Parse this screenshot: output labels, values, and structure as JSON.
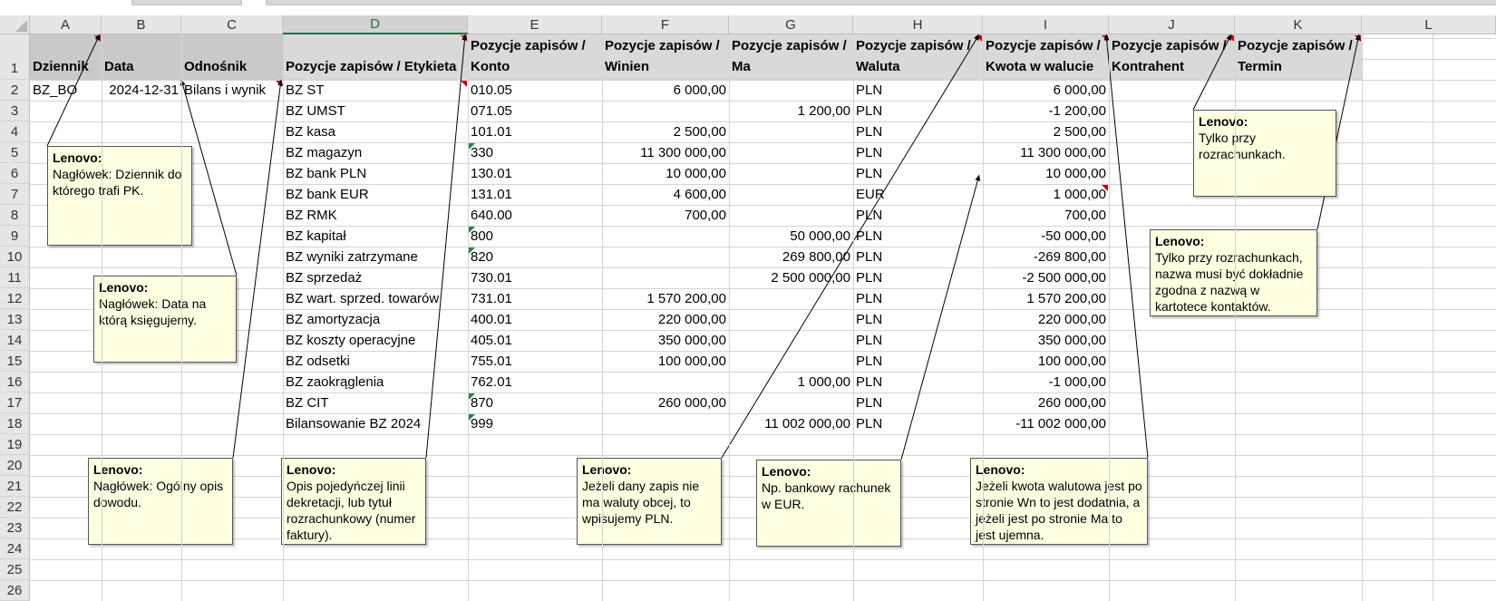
{
  "columns": [
    "A",
    "B",
    "C",
    "D",
    "E",
    "F",
    "G",
    "H",
    "I",
    "J",
    "K",
    "L"
  ],
  "rows": [
    "1",
    "2",
    "3",
    "4",
    "5",
    "6",
    "7",
    "8",
    "9",
    "10",
    "11",
    "12",
    "13",
    "14",
    "15",
    "16",
    "17",
    "18",
    "19",
    "20",
    "21",
    "22",
    "23",
    "24",
    "25",
    "26"
  ],
  "headers": {
    "dziennik": "Dziennik",
    "data": "Data",
    "odnosnik": "Odnośnik",
    "etykieta": "Pozycje zapisów / Etykieta",
    "konto": [
      "Pozycje zapisów /",
      "Konto"
    ],
    "winien": [
      "Pozycje zapisów /",
      "Winien"
    ],
    "ma": [
      "Pozycje zapisów /",
      "Ma"
    ],
    "waluta": [
      "Pozycje zapisów /",
      "Waluta"
    ],
    "kwota": [
      "Pozycje zapisów /",
      "Kwota w walucie"
    ],
    "kontrahent": [
      "Pozycje zapisów /",
      "Kontrahent"
    ],
    "termin": [
      "Pozycje zapisów /",
      "Termin"
    ]
  },
  "first_row": {
    "dziennik": "BZ_BO",
    "data": "2024-12-31",
    "odnosnik": "Bilans i wynik"
  },
  "entries": [
    {
      "etykieta": "BZ ST",
      "konto": "010.05",
      "winien": "6 000,00",
      "ma": "",
      "waluta": "PLN",
      "kwota": "6 000,00"
    },
    {
      "etykieta": "BZ UMST",
      "konto": "071.05",
      "winien": "",
      "ma": "1 200,00",
      "waluta": "PLN",
      "kwota": "-1 200,00"
    },
    {
      "etykieta": "BZ kasa",
      "konto": "101.01",
      "winien": "2 500,00",
      "ma": "",
      "waluta": "PLN",
      "kwota": "2 500,00"
    },
    {
      "etykieta": "BZ magazyn",
      "konto": "330",
      "winien": "11 300 000,00",
      "ma": "",
      "waluta": "PLN",
      "kwota": "11 300 000,00"
    },
    {
      "etykieta": "BZ bank PLN",
      "konto": "130.01",
      "winien": "10 000,00",
      "ma": "",
      "waluta": "PLN",
      "kwota": "10 000,00"
    },
    {
      "etykieta": "BZ bank EUR",
      "konto": "131.01",
      "winien": "4 600,00",
      "ma": "",
      "waluta": "EUR",
      "kwota": "1 000,00"
    },
    {
      "etykieta": "BZ RMK",
      "konto": "640.00",
      "winien": "700,00",
      "ma": "",
      "waluta": "PLN",
      "kwota": "700,00"
    },
    {
      "etykieta": "BZ kapitał",
      "konto": "800",
      "winien": "",
      "ma": "50 000,00",
      "waluta": "PLN",
      "kwota": "-50 000,00"
    },
    {
      "etykieta": "BZ wyniki zatrzymane",
      "konto": "820",
      "winien": "",
      "ma": "269 800,00",
      "waluta": "PLN",
      "kwota": "-269 800,00"
    },
    {
      "etykieta": "BZ sprzedaż",
      "konto": "730.01",
      "winien": "",
      "ma": "2 500 000,00",
      "waluta": "PLN",
      "kwota": "-2 500 000,00"
    },
    {
      "etykieta": "BZ wart. sprzed. towarów",
      "konto": "731.01",
      "winien": "1 570 200,00",
      "ma": "",
      "waluta": "PLN",
      "kwota": "1 570 200,00"
    },
    {
      "etykieta": "BZ amortyzacja",
      "konto": "400.01",
      "winien": "220 000,00",
      "ma": "",
      "waluta": "PLN",
      "kwota": "220 000,00"
    },
    {
      "etykieta": "BZ koszty operacyjne",
      "konto": "405.01",
      "winien": "350 000,00",
      "ma": "",
      "waluta": "PLN",
      "kwota": "350 000,00"
    },
    {
      "etykieta": "BZ odsetki",
      "konto": "755.01",
      "winien": "100 000,00",
      "ma": "",
      "waluta": "PLN",
      "kwota": "100 000,00"
    },
    {
      "etykieta": "BZ zaokrąglenia",
      "konto": "762.01",
      "winien": "",
      "ma": "1 000,00",
      "waluta": "PLN",
      "kwota": "-1 000,00"
    },
    {
      "etykieta": "BZ CIT",
      "konto": "870",
      "winien": "260 000,00",
      "ma": "",
      "waluta": "PLN",
      "kwota": "260 000,00"
    },
    {
      "etykieta": "Bilansowanie BZ 2024",
      "konto": "999",
      "winien": "",
      "ma": "11 002 000,00",
      "waluta": "PLN",
      "kwota": "-11 002 000,00"
    }
  ],
  "comments": [
    {
      "author": "Lenovo:",
      "text": "Nagłówek: Dziennik do którego trafi PK."
    },
    {
      "author": "Lenovo:",
      "text": "Nagłówek: Data na którą księgujemy."
    },
    {
      "author": "Lenovo:",
      "text": "Nagłówek: Ogólny opis dowodu."
    },
    {
      "author": "Lenovo:",
      "text": "Opis pojedyńczej linii dekretacji, lub tytuł rozrachunkowy (numer faktury)."
    },
    {
      "author": "Lenovo:",
      "text": "Jeżeli dany zapis nie ma waluty obcej, to wpisujemy PLN."
    },
    {
      "author": "Lenovo:",
      "text": "Np. bankowy rachunek w EUR."
    },
    {
      "author": "Lenovo:",
      "text": "Jeżeli kwota walutowa jest po stronie Wn to jest dodatnia, a jeżeli jest po stronie Ma to jest ujemna."
    },
    {
      "author": "Lenovo:",
      "text": "Tylko przy rozrachunkach."
    },
    {
      "author": "Lenovo:",
      "text": "Tylko przy rozrachunkach, nazwa musi być dokładnie zgodna z nazwą w kartotece kontaktów."
    }
  ],
  "colors": {
    "header_fill": "#d9d9d9",
    "selected_col": "#217346",
    "note_bg": "#ffffe1",
    "green_marker": "#1e8a3a",
    "red_marker": "#d40000"
  }
}
